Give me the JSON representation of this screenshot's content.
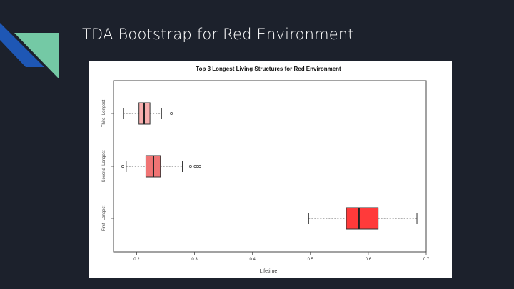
{
  "slide": {
    "title": "TDA Bootstrap for Red Environment"
  },
  "colors": {
    "background": "#1c212c",
    "accent_blue": "#1e57b5",
    "accent_teal": "#74c9a5",
    "box_third": "#f7aeae",
    "box_second": "#f07474",
    "box_first": "#ff3a3a"
  },
  "chart_data": {
    "type": "boxplot",
    "orientation": "horizontal",
    "title": "Top 3 Longest Living Structures for Red Environment",
    "xlabel": "Lifetime",
    "ylabel": "",
    "xlim": [
      0.16,
      0.7
    ],
    "x_ticks": [
      0.2,
      0.3,
      0.4,
      0.5,
      0.6,
      0.7
    ],
    "x_tick_labels": [
      "0.2",
      "0.3",
      "0.4",
      "0.5",
      "0.6",
      "0.7"
    ],
    "grid": false,
    "categories": [
      "Third_Longest",
      "Second_Longest",
      "First_Longest"
    ],
    "category_labels": [
      "Third_Longest",
      "Second_Longest",
      "First_Longest"
    ],
    "series": [
      {
        "name": "Third_Longest",
        "color": "#f7aeae",
        "whisker_low": 0.177,
        "q1": 0.204,
        "median": 0.213,
        "q3": 0.223,
        "whisker_high": 0.243,
        "outliers": [
          0.26
        ]
      },
      {
        "name": "Second_Longest",
        "color": "#f07474",
        "whisker_low": 0.182,
        "q1": 0.216,
        "median": 0.229,
        "q3": 0.241,
        "whisker_high": 0.279,
        "outliers": [
          0.176,
          0.293,
          0.301,
          0.305,
          0.309
        ]
      },
      {
        "name": "First_Longest",
        "color": "#ff3a3a",
        "whisker_low": 0.497,
        "q1": 0.562,
        "median": 0.584,
        "q3": 0.617,
        "whisker_high": 0.684,
        "outliers": []
      }
    ]
  }
}
